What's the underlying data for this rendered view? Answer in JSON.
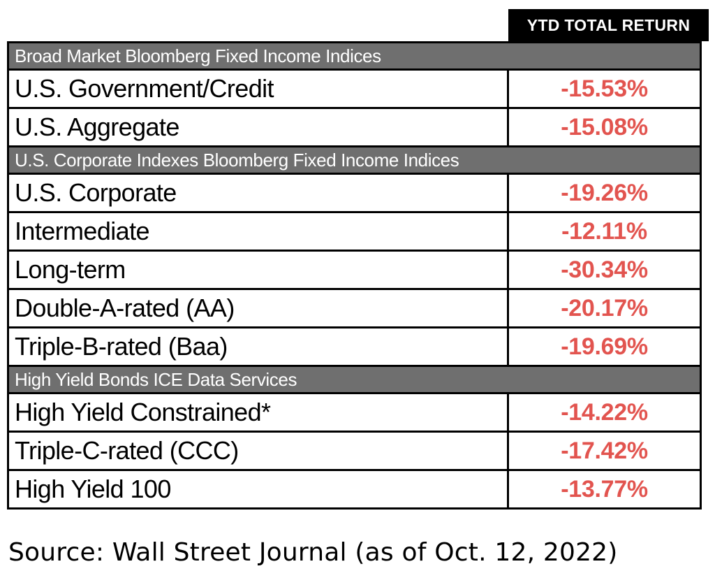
{
  "header": {
    "column_title": "YTD TOTAL RETURN"
  },
  "sections": [
    {
      "title": "Broad Market Bloomberg Fixed Income Indices",
      "rows": [
        {
          "label": "U.S. Government/Credit",
          "value": "-15.53%"
        },
        {
          "label": "U.S. Aggregate",
          "value": "-15.08%"
        }
      ]
    },
    {
      "title": "U.S. Corporate Indexes Bloomberg Fixed Income Indices",
      "rows": [
        {
          "label": "U.S. Corporate",
          "value": "-19.26%"
        },
        {
          "label": "Intermediate",
          "value": "-12.11%"
        },
        {
          "label": "Long-term",
          "value": "-30.34%"
        },
        {
          "label": "Double-A-rated (AA)",
          "value": "-20.17%"
        },
        {
          "label": "Triple-B-rated (Baa)",
          "value": "-19.69%"
        }
      ]
    },
    {
      "title": "High Yield Bonds ICE Data Services",
      "rows": [
        {
          "label": "High Yield Constrained*",
          "value": "-14.22%"
        },
        {
          "label": "Triple-C-rated (CCC)",
          "value": "-17.42%"
        },
        {
          "label": "High Yield 100",
          "value": "-13.77%"
        }
      ]
    }
  ],
  "footer": {
    "source": "Source: Wall Street Journal (as of Oct. 12, 2022)"
  },
  "colors": {
    "section_bg": "#6f6f6f",
    "header_bg": "#000000",
    "negative_value": "#e2544f"
  }
}
